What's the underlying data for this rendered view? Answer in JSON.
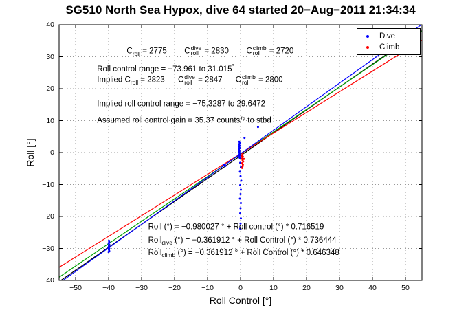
{
  "chart_data": {
    "type": "scatter",
    "title": "SG510 North Sea Hypox, dive 64 started 20−Aug−2011 21:34:34",
    "xlabel": "Roll Control [°]",
    "ylabel": "Roll [°]",
    "xlim": [
      -55,
      55
    ],
    "ylim": [
      -40,
      40
    ],
    "xticks": [
      -50,
      -40,
      -30,
      -20,
      -10,
      0,
      10,
      20,
      30,
      40,
      50
    ],
    "yticks": [
      -40,
      -30,
      -20,
      -10,
      0,
      10,
      20,
      30,
      40
    ],
    "grid": true,
    "grid_color": "#999999",
    "axes_color": "#000000",
    "legend": {
      "position": "top-right"
    },
    "series": [
      {
        "name": "Dive",
        "color": "#0000ff",
        "marker": "dot",
        "points": [
          [
            -39.9,
            -27.6
          ],
          [
            -39.8,
            -28.0
          ],
          [
            -40.0,
            -28.4
          ],
          [
            -39.8,
            -28.8
          ],
          [
            -39.9,
            -29.2
          ],
          [
            -40.0,
            -29.6
          ],
          [
            -39.8,
            -30.0
          ],
          [
            -39.9,
            -30.4
          ],
          [
            -39.8,
            -30.8
          ],
          [
            -40.0,
            -31.1
          ],
          [
            -5.0,
            -3.8
          ],
          [
            -4.6,
            -4.2
          ],
          [
            -0.4,
            3.4
          ],
          [
            -0.2,
            3.0
          ],
          [
            -0.5,
            2.6
          ],
          [
            -0.3,
            2.2
          ],
          [
            -0.4,
            1.8
          ],
          [
            -0.2,
            1.4
          ],
          [
            -0.5,
            1.0
          ],
          [
            -0.3,
            0.6
          ],
          [
            -0.4,
            0.2
          ],
          [
            -0.2,
            -0.2
          ],
          [
            -0.5,
            -0.6
          ],
          [
            -0.3,
            -1.0
          ],
          [
            -0.4,
            -1.4
          ],
          [
            -0.2,
            -1.8
          ],
          [
            -0.1,
            -3.2
          ],
          [
            0.1,
            -4.6
          ],
          [
            -0.2,
            -6.0
          ],
          [
            0.0,
            -7.4
          ],
          [
            0.2,
            -8.8
          ],
          [
            -0.1,
            -10.2
          ],
          [
            0.1,
            -11.6
          ],
          [
            0.0,
            -13.0
          ],
          [
            -0.2,
            -14.4
          ],
          [
            0.1,
            -15.8
          ],
          [
            0.0,
            -17.4
          ],
          [
            -0.1,
            -19.0
          ],
          [
            0.1,
            -20.6
          ],
          [
            0.0,
            -22.2
          ],
          [
            -0.1,
            -23.8
          ],
          [
            5.3,
            8.0
          ],
          [
            1.2,
            4.6
          ]
        ]
      },
      {
        "name": "Climb",
        "color": "#ff0000",
        "marker": "dot",
        "points": [
          [
            0.6,
            -0.3
          ],
          [
            0.5,
            -0.8
          ],
          [
            0.7,
            -1.3
          ],
          [
            0.5,
            -1.8
          ],
          [
            0.6,
            -2.3
          ],
          [
            0.8,
            -2.8
          ],
          [
            0.5,
            -3.3
          ],
          [
            0.7,
            -3.8
          ],
          [
            0.6,
            -4.3
          ],
          [
            0.5,
            -4.8
          ],
          [
            1.0,
            -2.0
          ],
          [
            0.3,
            -1.0
          ]
        ]
      }
    ],
    "fit_lines": [
      {
        "name": "combined-fit",
        "color": "#000000",
        "intercept": -0.980027,
        "slope": 0.716519
      },
      {
        "name": "implied-fit",
        "color": "#00a000",
        "intercept": -0.5,
        "slope": 0.7
      },
      {
        "name": "climb-fit",
        "color": "#ff0000",
        "intercept": -0.361912,
        "slope": 0.646348
      },
      {
        "name": "dive-fit",
        "color": "#0000ff",
        "intercept": -0.361912,
        "slope": 0.736444
      }
    ],
    "annotations": [
      {
        "name": "c-roll-values",
        "x": -34.5,
        "y": 31.5,
        "text": "C_roll = 2775    C_roll^dive = 2830    C_roll^climb = 2720",
        "segments": [
          {
            "t": "C"
          },
          {
            "sub": "roll"
          },
          {
            "t": " = 2775        "
          },
          {
            "t": "C"
          },
          {
            "stack": {
              "sup": "dive",
              "sub": "roll"
            }
          },
          {
            "t": " = 2830        "
          },
          {
            "t": "C"
          },
          {
            "stack": {
              "sup": "climb",
              "sub": "roll"
            }
          },
          {
            "t": " = 2720"
          }
        ]
      },
      {
        "name": "roll-control-range",
        "x": -43.5,
        "y": 26.5,
        "text": "Roll control range = −73.961 to 31.015°",
        "segments": [
          {
            "t": "Roll control range = −73.961 to 31.015"
          },
          {
            "sup": "°"
          }
        ]
      },
      {
        "name": "implied-c-roll-values",
        "x": -43.5,
        "y": 22.3,
        "text": "Implied C_roll = 2823    C_roll^dive = 2847    C_roll^climb = 2800",
        "segments": [
          {
            "t": "Implied C"
          },
          {
            "sub": "roll"
          },
          {
            "t": " = 2823      "
          },
          {
            "t": "C"
          },
          {
            "stack": {
              "sup": "dive",
              "sub": "roll"
            }
          },
          {
            "t": " = 2847      "
          },
          {
            "t": "C"
          },
          {
            "stack": {
              "sup": "climb",
              "sub": "roll"
            }
          },
          {
            "t": " = 2800"
          }
        ]
      },
      {
        "name": "implied-roll-control-range",
        "x": -43.5,
        "y": 15.0,
        "text": "Implied roll control range = −75.3287 to 29.6472",
        "segments": [
          {
            "t": "Implied roll control range = −75.3287 to 29.6472"
          }
        ]
      },
      {
        "name": "assumed-roll-control-gain",
        "x": -43.5,
        "y": 10.0,
        "text": "Assumed roll control gain = 35.37 counts/° to stbd",
        "segments": [
          {
            "t": "Assumed roll control gain = 35.37 counts/° to stbd"
          }
        ]
      },
      {
        "name": "fit-equation-combined",
        "x": -28,
        "y": -23.5,
        "text": "Roll (°) = −0.980027 ° + Roll control (°) * 0.716519",
        "segments": [
          {
            "t": "Roll (°) = −0.980027 ° + Roll control (°) * 0.716519"
          }
        ]
      },
      {
        "name": "fit-equation-dive",
        "x": -28,
        "y": -28.0,
        "text": "Roll_dive (°) = −0.361912 ° + Roll Control (°) * 0.736444",
        "segments": [
          {
            "t": "Roll"
          },
          {
            "sub": "dive"
          },
          {
            "t": " (°) = −0.361912 ° + Roll Control (°) * 0.736444"
          }
        ]
      },
      {
        "name": "fit-equation-climb",
        "x": -28,
        "y": -31.8,
        "text": "Roll_climb (°) = −0.361912 ° + Roll Control (°) * 0.646348",
        "segments": [
          {
            "t": "Roll"
          },
          {
            "sub": "climb"
          },
          {
            "t": " (°) = −0.361912 ° + Roll Control (°) * 0.646348"
          }
        ]
      }
    ]
  }
}
